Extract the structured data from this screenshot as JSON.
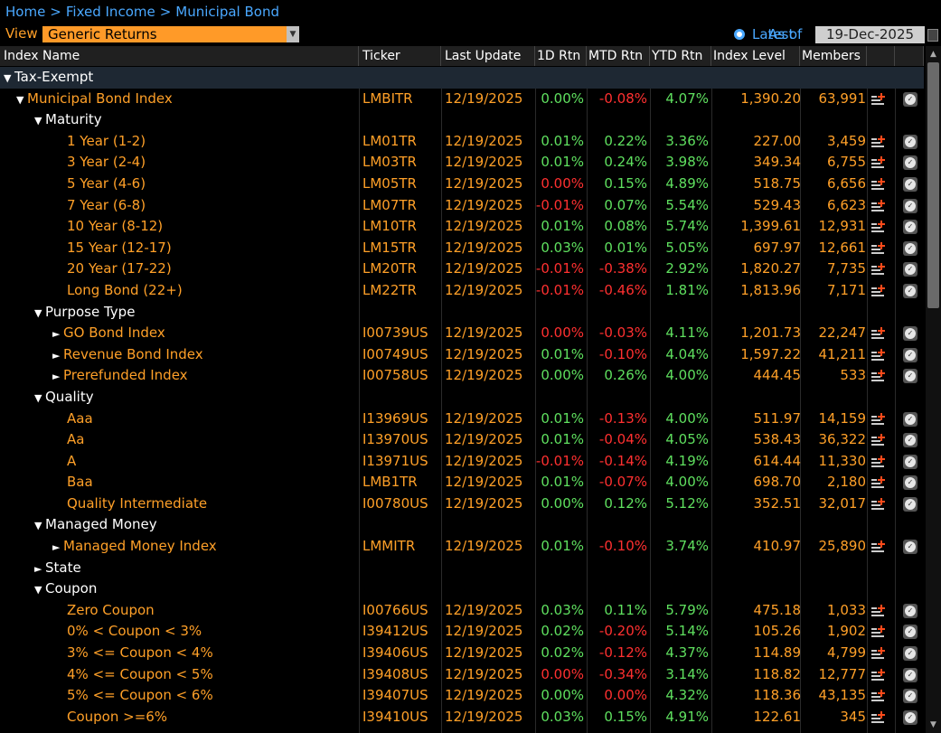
{
  "breadcrumb": [
    "Home",
    "Fixed Income",
    "Municipal Bond"
  ],
  "breadcrumb_sep": ">",
  "view": {
    "label": "View",
    "selected": "Generic Returns"
  },
  "date_mode": {
    "latest": "Latest",
    "as_of": "As of",
    "date": "19-Dec-2025"
  },
  "columns": [
    "Index Name",
    "Ticker",
    "Last Update",
    "1D Rtn",
    "MTD Rtn",
    "YTD Rtn",
    "Index Level",
    "Members"
  ],
  "rows": [
    {
      "indent": 0,
      "tw": "▼",
      "name": "Tax-Exempt",
      "group": true,
      "white": true
    },
    {
      "indent": 1,
      "tw": "▼",
      "name": "Municipal Bond Index",
      "ticker": "LMBITR",
      "date": "12/19/2025",
      "d1": "0.00%",
      "d1s": "pos",
      "mtd": "-0.08%",
      "mtds": "neg",
      "ytd": "4.07%",
      "lvl": "1,390.20",
      "mem": "63,991"
    },
    {
      "indent": 2,
      "tw": "▼",
      "name": "Maturity",
      "white": true
    },
    {
      "indent": 4,
      "tw": "",
      "name": "1 Year (1-2)",
      "ticker": "LM01TR",
      "date": "12/19/2025",
      "d1": "0.01%",
      "d1s": "pos",
      "mtd": "0.22%",
      "mtds": "pos",
      "ytd": "3.36%",
      "lvl": "227.00",
      "mem": "3,459"
    },
    {
      "indent": 4,
      "tw": "",
      "name": "3 Year (2-4)",
      "ticker": "LM03TR",
      "date": "12/19/2025",
      "d1": "0.01%",
      "d1s": "pos",
      "mtd": "0.24%",
      "mtds": "pos",
      "ytd": "3.98%",
      "lvl": "349.34",
      "mem": "6,755"
    },
    {
      "indent": 4,
      "tw": "",
      "name": "5 Year (4-6)",
      "ticker": "LM05TR",
      "date": "12/19/2025",
      "d1": "0.00%",
      "d1s": "neg",
      "mtd": "0.15%",
      "mtds": "pos",
      "ytd": "4.89%",
      "lvl": "518.75",
      "mem": "6,656"
    },
    {
      "indent": 4,
      "tw": "",
      "name": "7 Year (6-8)",
      "ticker": "LM07TR",
      "date": "12/19/2025",
      "d1": "-0.01%",
      "d1s": "neg",
      "mtd": "0.07%",
      "mtds": "pos",
      "ytd": "5.54%",
      "lvl": "529.43",
      "mem": "6,623"
    },
    {
      "indent": 4,
      "tw": "",
      "name": "10 Year (8-12)",
      "ticker": "LM10TR",
      "date": "12/19/2025",
      "d1": "0.01%",
      "d1s": "pos",
      "mtd": "0.08%",
      "mtds": "pos",
      "ytd": "5.74%",
      "lvl": "1,399.61",
      "mem": "12,931"
    },
    {
      "indent": 4,
      "tw": "",
      "name": "15 Year (12-17)",
      "ticker": "LM15TR",
      "date": "12/19/2025",
      "d1": "0.03%",
      "d1s": "pos",
      "mtd": "0.01%",
      "mtds": "pos",
      "ytd": "5.05%",
      "lvl": "697.97",
      "mem": "12,661"
    },
    {
      "indent": 4,
      "tw": "",
      "name": "20 Year (17-22)",
      "ticker": "LM20TR",
      "date": "12/19/2025",
      "d1": "-0.01%",
      "d1s": "neg",
      "mtd": "-0.38%",
      "mtds": "neg",
      "ytd": "2.92%",
      "lvl": "1,820.27",
      "mem": "7,735"
    },
    {
      "indent": 4,
      "tw": "",
      "name": "Long Bond (22+)",
      "ticker": "LM22TR",
      "date": "12/19/2025",
      "d1": "-0.01%",
      "d1s": "neg",
      "mtd": "-0.46%",
      "mtds": "neg",
      "ytd": "1.81%",
      "lvl": "1,813.96",
      "mem": "7,171"
    },
    {
      "indent": 2,
      "tw": "▼",
      "name": "Purpose Type",
      "white": true
    },
    {
      "indent": 3,
      "tw": "►",
      "name": "GO Bond Index",
      "ticker": "I00739US",
      "date": "12/19/2025",
      "d1": "0.00%",
      "d1s": "neg",
      "mtd": "-0.03%",
      "mtds": "neg",
      "ytd": "4.11%",
      "lvl": "1,201.73",
      "mem": "22,247"
    },
    {
      "indent": 3,
      "tw": "►",
      "name": "Revenue Bond Index",
      "ticker": "I00749US",
      "date": "12/19/2025",
      "d1": "0.01%",
      "d1s": "pos",
      "mtd": "-0.10%",
      "mtds": "neg",
      "ytd": "4.04%",
      "lvl": "1,597.22",
      "mem": "41,211"
    },
    {
      "indent": 3,
      "tw": "►",
      "name": "Prerefunded Index",
      "ticker": "I00758US",
      "date": "12/19/2025",
      "d1": "0.00%",
      "d1s": "pos",
      "mtd": "0.26%",
      "mtds": "pos",
      "ytd": "4.00%",
      "lvl": "444.45",
      "mem": "533"
    },
    {
      "indent": 2,
      "tw": "▼",
      "name": "Quality",
      "white": true
    },
    {
      "indent": 4,
      "tw": "",
      "name": "Aaa",
      "ticker": "I13969US",
      "date": "12/19/2025",
      "d1": "0.01%",
      "d1s": "pos",
      "mtd": "-0.13%",
      "mtds": "neg",
      "ytd": "4.00%",
      "lvl": "511.97",
      "mem": "14,159"
    },
    {
      "indent": 4,
      "tw": "",
      "name": "Aa",
      "ticker": "I13970US",
      "date": "12/19/2025",
      "d1": "0.01%",
      "d1s": "pos",
      "mtd": "-0.04%",
      "mtds": "neg",
      "ytd": "4.05%",
      "lvl": "538.43",
      "mem": "36,322"
    },
    {
      "indent": 4,
      "tw": "",
      "name": "A",
      "ticker": "I13971US",
      "date": "12/19/2025",
      "d1": "-0.01%",
      "d1s": "neg",
      "mtd": "-0.14%",
      "mtds": "neg",
      "ytd": "4.19%",
      "lvl": "614.44",
      "mem": "11,330"
    },
    {
      "indent": 4,
      "tw": "",
      "name": "Baa",
      "ticker": "LMB1TR",
      "date": "12/19/2025",
      "d1": "0.01%",
      "d1s": "pos",
      "mtd": "-0.07%",
      "mtds": "neg",
      "ytd": "4.00%",
      "lvl": "698.70",
      "mem": "2,180"
    },
    {
      "indent": 4,
      "tw": "",
      "name": "Quality Intermediate",
      "ticker": "I00780US",
      "date": "12/19/2025",
      "d1": "0.00%",
      "d1s": "pos",
      "mtd": "0.12%",
      "mtds": "pos",
      "ytd": "5.12%",
      "lvl": "352.51",
      "mem": "32,017"
    },
    {
      "indent": 2,
      "tw": "▼",
      "name": "Managed Money",
      "white": true
    },
    {
      "indent": 3,
      "tw": "►",
      "name": "Managed Money Index",
      "ticker": "LMMITR",
      "date": "12/19/2025",
      "d1": "0.01%",
      "d1s": "pos",
      "mtd": "-0.10%",
      "mtds": "neg",
      "ytd": "3.74%",
      "lvl": "410.97",
      "mem": "25,890"
    },
    {
      "indent": 2,
      "tw": "►",
      "name": "State",
      "white": true
    },
    {
      "indent": 2,
      "tw": "▼",
      "name": "Coupon",
      "white": true
    },
    {
      "indent": 4,
      "tw": "",
      "name": "Zero Coupon",
      "ticker": "I00766US",
      "date": "12/19/2025",
      "d1": "0.03%",
      "d1s": "pos",
      "mtd": "0.11%",
      "mtds": "pos",
      "ytd": "5.79%",
      "lvl": "475.18",
      "mem": "1,033"
    },
    {
      "indent": 4,
      "tw": "",
      "name": "0% < Coupon < 3%",
      "ticker": "I39412US",
      "date": "12/19/2025",
      "d1": "0.02%",
      "d1s": "pos",
      "mtd": "-0.20%",
      "mtds": "neg",
      "ytd": "5.14%",
      "lvl": "105.26",
      "mem": "1,902"
    },
    {
      "indent": 4,
      "tw": "",
      "name": "3% <= Coupon < 4%",
      "ticker": "I39406US",
      "date": "12/19/2025",
      "d1": "0.02%",
      "d1s": "pos",
      "mtd": "-0.12%",
      "mtds": "neg",
      "ytd": "4.37%",
      "lvl": "114.89",
      "mem": "4,799"
    },
    {
      "indent": 4,
      "tw": "",
      "name": "4% <= Coupon < 5%",
      "ticker": "I39408US",
      "date": "12/19/2025",
      "d1": "0.00%",
      "d1s": "neg",
      "mtd": "-0.34%",
      "mtds": "neg",
      "ytd": "3.14%",
      "lvl": "118.82",
      "mem": "12,777"
    },
    {
      "indent": 4,
      "tw": "",
      "name": "5% <= Coupon < 6%",
      "ticker": "I39407US",
      "date": "12/19/2025",
      "d1": "0.00%",
      "d1s": "pos",
      "mtd": "0.00%",
      "mtds": "neg",
      "ytd": "4.32%",
      "lvl": "118.36",
      "mem": "43,135"
    },
    {
      "indent": 4,
      "tw": "",
      "name": "Coupon >=6%",
      "ticker": "I39410US",
      "date": "12/19/2025",
      "d1": "0.03%",
      "d1s": "pos",
      "mtd": "0.15%",
      "mtds": "pos",
      "ytd": "4.91%",
      "lvl": "122.61",
      "mem": "345"
    }
  ],
  "icons": {
    "add": "add-to-list-icon",
    "chart": "chart-icon",
    "triangle_down": "▼",
    "triangle_right": "►"
  },
  "colors": {
    "amber": "#ffa028",
    "link_blue": "#4aa8ff",
    "positive": "#5fe05f",
    "negative": "#ff3030",
    "background": "#000000"
  }
}
